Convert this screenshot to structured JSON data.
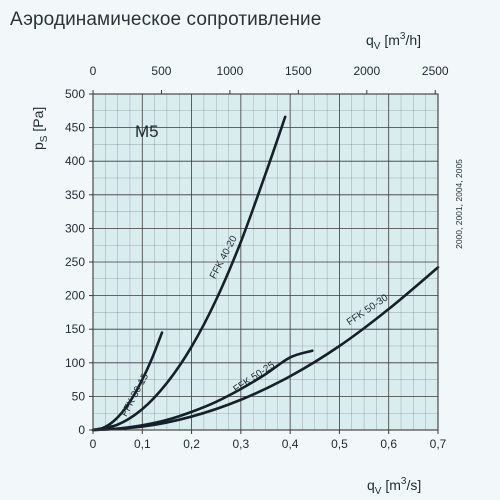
{
  "title": "Аэродинамическое сопротивление",
  "side_note": "2000, 2001, 2004, 2005",
  "chart_data": {
    "type": "line",
    "title": "Аэродинамическое сопротивление",
    "panel_label": "M5",
    "xlabel": {
      "symbol": "q",
      "sub": "V",
      "unit_pre": "[m",
      "unit_sup": "3",
      "unit_post": "/s]"
    },
    "x2label": {
      "symbol": "q",
      "sub": "V",
      "unit_pre": "[m",
      "unit_sup": "3",
      "unit_post": "/h]"
    },
    "ylabel": {
      "symbol": "p",
      "sub": "S",
      "unit": "[Pa]"
    },
    "xlim": [
      0,
      0.7
    ],
    "ylim": [
      0,
      500
    ],
    "x2lim": [
      0,
      2520
    ],
    "xticks": [
      0,
      0.1,
      0.2,
      0.3,
      0.4,
      0.5,
      0.6,
      0.7
    ],
    "xtick_labels": [
      "0",
      "0,1",
      "0,2",
      "0,3",
      "0,4",
      "0,5",
      "0,6",
      "0,7"
    ],
    "x2ticks": [
      0,
      500,
      1000,
      1500,
      2000,
      2500
    ],
    "x2tick_labels": [
      "0",
      "500",
      "1000",
      "1500",
      "2000",
      "2500"
    ],
    "yticks": [
      0,
      50,
      100,
      150,
      200,
      250,
      300,
      350,
      400,
      450,
      500
    ],
    "ytick_labels": [
      "0",
      "50",
      "100",
      "150",
      "200",
      "250",
      "300",
      "350",
      "400",
      "450",
      "500"
    ],
    "grid": true,
    "series": [
      {
        "name": "FFK 30-15",
        "x": [
          0,
          0.02,
          0.04,
          0.06,
          0.08,
          0.1,
          0.12,
          0.14
        ],
        "y": [
          0,
          3,
          12,
          27,
          48,
          75,
          107,
          145
        ]
      },
      {
        "name": "FFK 40-20",
        "x": [
          0,
          0.05,
          0.1,
          0.15,
          0.2,
          0.25,
          0.3,
          0.35,
          0.39
        ],
        "y": [
          0,
          8,
          31,
          70,
          124,
          194,
          280,
          381,
          466
        ]
      },
      {
        "name": "FFK 50-25",
        "x": [
          0,
          0.05,
          0.1,
          0.15,
          0.2,
          0.25,
          0.3,
          0.35,
          0.4,
          0.445
        ],
        "y": [
          0,
          2,
          7,
          15,
          27,
          42,
          61,
          83,
          108,
          118
        ]
      },
      {
        "name": "FFK 50-30",
        "x": [
          0,
          0.1,
          0.2,
          0.3,
          0.4,
          0.5,
          0.6,
          0.7
        ],
        "y": [
          0,
          5,
          20,
          45,
          80,
          125,
          180,
          242
        ]
      }
    ],
    "series_labels": [
      {
        "text": "FFK 30-15",
        "at": [
          0.09,
          50
        ],
        "angle": -62
      },
      {
        "text": "FFK 40-20",
        "at": [
          0.27,
          255
        ],
        "angle": -62
      },
      {
        "text": "FFK 50-25",
        "at": [
          0.33,
          75
        ],
        "angle": -34
      },
      {
        "text": "FFK 50-30",
        "at": [
          0.56,
          175
        ],
        "angle": -34
      }
    ]
  },
  "colors": {
    "plot_background": "#d9edef",
    "grid": "#3a3a3a",
    "curve": "#16202a",
    "text": "#1e2a33"
  }
}
